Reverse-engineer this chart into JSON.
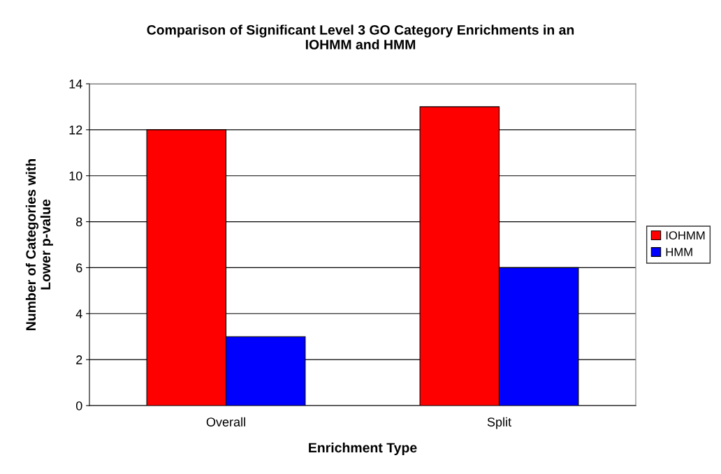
{
  "chart_data": {
    "type": "bar",
    "title": "Comparison of Significant Level 3 GO Category Enrichments in an\nIOHMM and HMM",
    "xlabel": "Enrichment Type",
    "ylabel": "Number of Categories with\nLower p-value",
    "categories": [
      "Overall",
      "Split"
    ],
    "series": [
      {
        "name": "IOHMM",
        "color": "#ff0000",
        "values": [
          12,
          13
        ]
      },
      {
        "name": "HMM",
        "color": "#0000ff",
        "values": [
          3,
          6
        ]
      }
    ],
    "ylim": [
      0,
      14
    ],
    "yticks": [
      0,
      2,
      4,
      6,
      8,
      10,
      12,
      14
    ],
    "grid": "y",
    "legend": "right"
  }
}
